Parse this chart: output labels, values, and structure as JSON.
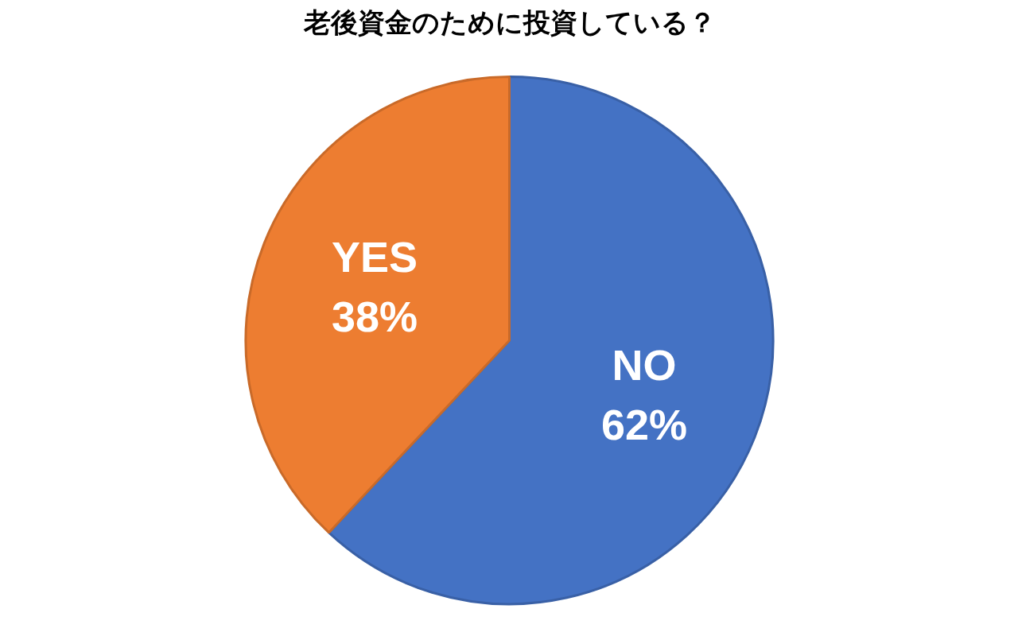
{
  "chart_data": {
    "type": "pie",
    "title": "老後資金のために投資している？",
    "categories": [
      "NO",
      "YES"
    ],
    "values": [
      62,
      38
    ],
    "colors": [
      "#4472c4",
      "#ed7d31"
    ],
    "value_labels": [
      "62%",
      "38%"
    ]
  }
}
